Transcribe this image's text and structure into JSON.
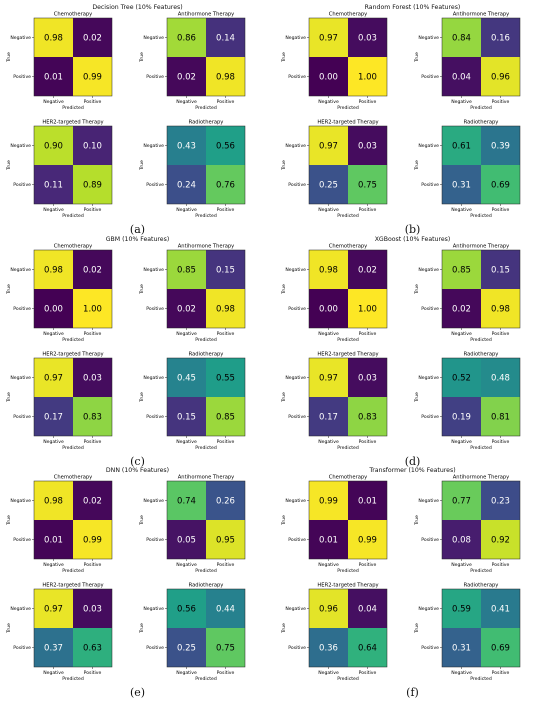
{
  "chart_data": [
    {
      "type": "heatmap",
      "panel_label": "(a)",
      "title": "Decision Tree (10% Features)",
      "subplots": [
        {
          "title": "Chemotherapy",
          "rows": [
            "Negative",
            "Positive"
          ],
          "cols": [
            "Negative",
            "Positive"
          ],
          "values": [
            [
              0.98,
              0.02
            ],
            [
              0.01,
              0.99
            ]
          ]
        },
        {
          "title": "Antihormone Therapy",
          "rows": [
            "Negative",
            "Positive"
          ],
          "cols": [
            "Negative",
            "Positive"
          ],
          "values": [
            [
              0.86,
              0.14
            ],
            [
              0.02,
              0.98
            ]
          ]
        },
        {
          "title": "HER2-targeted Therapy",
          "rows": [
            "Negative",
            "Positive"
          ],
          "cols": [
            "Negative",
            "Positive"
          ],
          "values": [
            [
              0.9,
              0.1
            ],
            [
              0.11,
              0.89
            ]
          ]
        },
        {
          "title": "Radiotherapy",
          "rows": [
            "Negative",
            "Positive"
          ],
          "cols": [
            "Negative",
            "Positive"
          ],
          "values": [
            [
              0.43,
              0.56
            ],
            [
              0.24,
              0.76
            ]
          ]
        }
      ],
      "xlabel": "Predicted",
      "ylabel": "True",
      "colormap": "viridis",
      "value_range": [
        0,
        1
      ]
    },
    {
      "type": "heatmap",
      "panel_label": "(b)",
      "title": "Random Forest (10% Features)",
      "subplots": [
        {
          "title": "Chemotherapy",
          "rows": [
            "Negative",
            "Positive"
          ],
          "cols": [
            "Negative",
            "Positive"
          ],
          "values": [
            [
              0.97,
              0.03
            ],
            [
              0.0,
              1.0
            ]
          ]
        },
        {
          "title": "Antihormone Therapy",
          "rows": [
            "Negative",
            "Positive"
          ],
          "cols": [
            "Negative",
            "Positive"
          ],
          "values": [
            [
              0.84,
              0.16
            ],
            [
              0.04,
              0.96
            ]
          ]
        },
        {
          "title": "HER2-targeted Therapy",
          "rows": [
            "Negative",
            "Positive"
          ],
          "cols": [
            "Negative",
            "Positive"
          ],
          "values": [
            [
              0.97,
              0.03
            ],
            [
              0.25,
              0.75
            ]
          ]
        },
        {
          "title": "Radiotherapy",
          "rows": [
            "Negative",
            "Positive"
          ],
          "cols": [
            "Negative",
            "Positive"
          ],
          "values": [
            [
              0.61,
              0.39
            ],
            [
              0.31,
              0.69
            ]
          ]
        }
      ],
      "xlabel": "Predicted",
      "ylabel": "True",
      "colormap": "viridis",
      "value_range": [
        0,
        1
      ]
    },
    {
      "type": "heatmap",
      "panel_label": "(c)",
      "title": "GBM (10% Features)",
      "subplots": [
        {
          "title": "Chemotherapy",
          "rows": [
            "Negative",
            "Positive"
          ],
          "cols": [
            "Negative",
            "Positive"
          ],
          "values": [
            [
              0.98,
              0.02
            ],
            [
              0.0,
              1.0
            ]
          ]
        },
        {
          "title": "Antihormone Therapy",
          "rows": [
            "Negative",
            "Positive"
          ],
          "cols": [
            "Negative",
            "Positive"
          ],
          "values": [
            [
              0.85,
              0.15
            ],
            [
              0.02,
              0.98
            ]
          ]
        },
        {
          "title": "HER2-targeted Therapy",
          "rows": [
            "Negative",
            "Positive"
          ],
          "cols": [
            "Negative",
            "Positive"
          ],
          "values": [
            [
              0.97,
              0.03
            ],
            [
              0.17,
              0.83
            ]
          ]
        },
        {
          "title": "Radiotherapy",
          "rows": [
            "Negative",
            "Positive"
          ],
          "cols": [
            "Negative",
            "Positive"
          ],
          "values": [
            [
              0.45,
              0.55
            ],
            [
              0.15,
              0.85
            ]
          ]
        }
      ],
      "xlabel": "Predicted",
      "ylabel": "True",
      "colormap": "viridis",
      "value_range": [
        0,
        1
      ]
    },
    {
      "type": "heatmap",
      "panel_label": "(d)",
      "title": "XGBoost (10% Features)",
      "subplots": [
        {
          "title": "Chemotherapy",
          "rows": [
            "Negative",
            "Positive"
          ],
          "cols": [
            "Negative",
            "Positive"
          ],
          "values": [
            [
              0.98,
              0.02
            ],
            [
              0.0,
              1.0
            ]
          ]
        },
        {
          "title": "Antihormone Therapy",
          "rows": [
            "Negative",
            "Positive"
          ],
          "cols": [
            "Negative",
            "Positive"
          ],
          "values": [
            [
              0.85,
              0.15
            ],
            [
              0.02,
              0.98
            ]
          ]
        },
        {
          "title": "HER2-targeted Therapy",
          "rows": [
            "Negative",
            "Positive"
          ],
          "cols": [
            "Negative",
            "Positive"
          ],
          "values": [
            [
              0.97,
              0.03
            ],
            [
              0.17,
              0.83
            ]
          ]
        },
        {
          "title": "Radiotherapy",
          "rows": [
            "Negative",
            "Positive"
          ],
          "cols": [
            "Negative",
            "Positive"
          ],
          "values": [
            [
              0.52,
              0.48
            ],
            [
              0.19,
              0.81
            ]
          ]
        }
      ],
      "xlabel": "Predicted",
      "ylabel": "True",
      "colormap": "viridis",
      "value_range": [
        0,
        1
      ]
    },
    {
      "type": "heatmap",
      "panel_label": "(e)",
      "title": "DNN (10% Features)",
      "subplots": [
        {
          "title": "Chemotherapy",
          "rows": [
            "Negative",
            "Positive"
          ],
          "cols": [
            "Negative",
            "Positive"
          ],
          "values": [
            [
              0.98,
              0.02
            ],
            [
              0.01,
              0.99
            ]
          ]
        },
        {
          "title": "Antihormone Therapy",
          "rows": [
            "Negative",
            "Positive"
          ],
          "cols": [
            "Negative",
            "Positive"
          ],
          "values": [
            [
              0.74,
              0.26
            ],
            [
              0.05,
              0.95
            ]
          ]
        },
        {
          "title": "HER2-targeted Therapy",
          "rows": [
            "Negative",
            "Positive"
          ],
          "cols": [
            "Negative",
            "Positive"
          ],
          "values": [
            [
              0.97,
              0.03
            ],
            [
              0.37,
              0.63
            ]
          ]
        },
        {
          "title": "Radiotherapy",
          "rows": [
            "Negative",
            "Positive"
          ],
          "cols": [
            "Negative",
            "Positive"
          ],
          "values": [
            [
              0.56,
              0.44
            ],
            [
              0.25,
              0.75
            ]
          ]
        }
      ],
      "xlabel": "Predicted",
      "ylabel": "True",
      "colormap": "viridis",
      "value_range": [
        0,
        1
      ]
    },
    {
      "type": "heatmap",
      "panel_label": "(f)",
      "title": "Transformer (10% Features)",
      "subplots": [
        {
          "title": "Chemotherapy",
          "rows": [
            "Negative",
            "Positive"
          ],
          "cols": [
            "Negative",
            "Positive"
          ],
          "values": [
            [
              0.99,
              0.01
            ],
            [
              0.01,
              0.99
            ]
          ]
        },
        {
          "title": "Antihormone Therapy",
          "rows": [
            "Negative",
            "Positive"
          ],
          "cols": [
            "Negative",
            "Positive"
          ],
          "values": [
            [
              0.77,
              0.23
            ],
            [
              0.08,
              0.92
            ]
          ]
        },
        {
          "title": "HER2-targeted Therapy",
          "rows": [
            "Negative",
            "Positive"
          ],
          "cols": [
            "Negative",
            "Positive"
          ],
          "values": [
            [
              0.96,
              0.04
            ],
            [
              0.36,
              0.64
            ]
          ]
        },
        {
          "title": "Radiotherapy",
          "rows": [
            "Negative",
            "Positive"
          ],
          "cols": [
            "Negative",
            "Positive"
          ],
          "values": [
            [
              0.59,
              0.41
            ],
            [
              0.31,
              0.69
            ]
          ]
        }
      ],
      "xlabel": "Predicted",
      "ylabel": "True",
      "colormap": "viridis",
      "value_range": [
        0,
        1
      ]
    }
  ]
}
